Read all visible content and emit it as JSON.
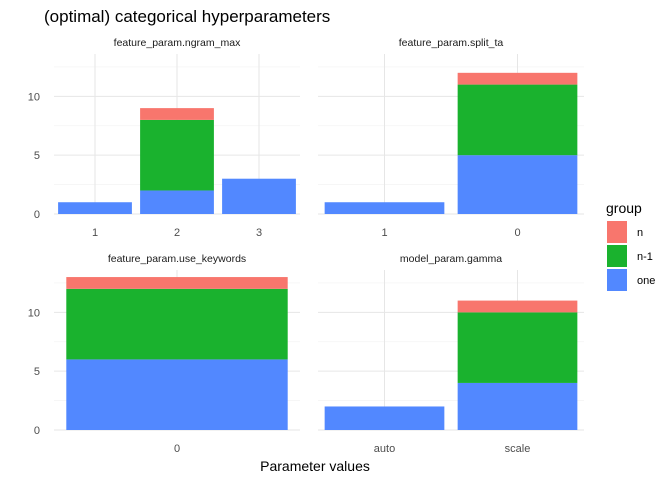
{
  "chart_data": {
    "type": "bar",
    "stacked": true,
    "title": "(optimal) categorical hyperparameters",
    "xlabel": "Parameter values",
    "ylabel": "",
    "ylim": [
      0,
      13.6
    ],
    "y_ticks": [
      0,
      5,
      10
    ],
    "grid": true,
    "legend": {
      "title": "group",
      "position": "right",
      "items": [
        {
          "label": "n",
          "color": "#F8766D"
        },
        {
          "label": "n-1",
          "color": "#1AB22E"
        },
        {
          "label": "one",
          "color": "#5288FF"
        }
      ]
    },
    "facets": [
      {
        "title": "feature_param.ngram_max",
        "categories": [
          "1",
          "2",
          "3"
        ],
        "series": [
          {
            "name": "one",
            "values": [
              1,
              2,
              3
            ]
          },
          {
            "name": "n-1",
            "values": [
              0,
              6,
              0
            ]
          },
          {
            "name": "n",
            "values": [
              0,
              1,
              0
            ]
          }
        ]
      },
      {
        "title": "feature_param.split_ta",
        "categories": [
          "1",
          "0"
        ],
        "series": [
          {
            "name": "one",
            "values": [
              1,
              5
            ]
          },
          {
            "name": "n-1",
            "values": [
              0,
              6
            ]
          },
          {
            "name": "n",
            "values": [
              0,
              1
            ]
          }
        ]
      },
      {
        "title": "feature_param.use_keywords",
        "categories": [
          "0"
        ],
        "series": [
          {
            "name": "one",
            "values": [
              6
            ]
          },
          {
            "name": "n-1",
            "values": [
              6
            ]
          },
          {
            "name": "n",
            "values": [
              1
            ]
          }
        ]
      },
      {
        "title": "model_param.gamma",
        "categories": [
          "auto",
          "scale"
        ],
        "series": [
          {
            "name": "one",
            "values": [
              2,
              4
            ]
          },
          {
            "name": "n-1",
            "values": [
              0,
              6
            ]
          },
          {
            "name": "n",
            "values": [
              0,
              1
            ]
          }
        ]
      }
    ]
  }
}
